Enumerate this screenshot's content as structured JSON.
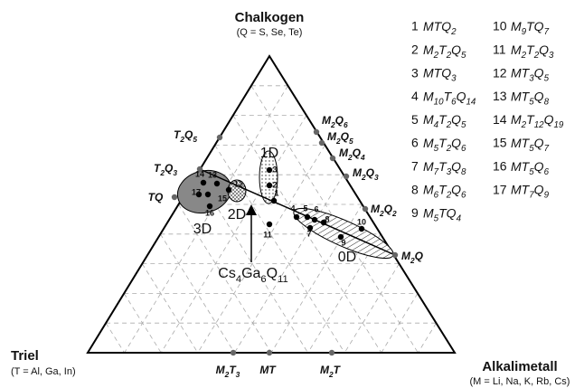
{
  "vertices": {
    "top": {
      "name": "Chalkogen",
      "note": "(Q =  S, Se, Te)"
    },
    "left": {
      "name": "Triel",
      "note": "(T = Al, Ga, In)"
    },
    "right": {
      "name": "Alkalimetall",
      "note": "(M = Li, Na, K, Rb, Cs)"
    }
  },
  "edge_compounds": [
    [
      "T",
      "2",
      "Q",
      "5"
    ],
    [
      "T",
      "2",
      "Q",
      "3"
    ],
    [
      "TQ"
    ],
    [
      "M",
      "2",
      "Q",
      "6"
    ],
    [
      "M",
      "2",
      "Q",
      "5"
    ],
    [
      "M",
      "2",
      "Q",
      "4"
    ],
    [
      "M",
      "2",
      "Q",
      "3"
    ],
    [
      "M",
      "2",
      "Q",
      "2"
    ],
    [
      "M",
      "2",
      "Q"
    ],
    [
      "M",
      "2",
      "T",
      "3"
    ],
    [
      "MT"
    ],
    [
      "M",
      "2",
      "T"
    ]
  ],
  "regions": [
    "1D",
    "2D",
    "3D",
    "0D"
  ],
  "points": [
    "1",
    "2",
    "3",
    "4",
    "5",
    "6",
    "7",
    "8",
    "9",
    "10",
    "11",
    "12",
    "13",
    "14",
    "15",
    "16",
    "17"
  ],
  "annotation": [
    "Cs",
    "4",
    "Ga",
    "6",
    "Q",
    "11"
  ],
  "legend": [
    {
      "number": "1",
      "formula": [
        "MTQ",
        "2"
      ]
    },
    {
      "number": "2",
      "formula": [
        "M",
        "2",
        "T",
        "2",
        "Q",
        "5"
      ]
    },
    {
      "number": "3",
      "formula": [
        "MTQ",
        "3"
      ]
    },
    {
      "number": "4",
      "formula": [
        "M",
        "10",
        "T",
        "6",
        "Q",
        "14"
      ]
    },
    {
      "number": "5",
      "formula": [
        "M",
        "4",
        "T",
        "2",
        "Q",
        "5"
      ]
    },
    {
      "number": "6",
      "formula": [
        "M",
        "5",
        "T",
        "2",
        "Q",
        "6"
      ]
    },
    {
      "number": "7",
      "formula": [
        "M",
        "7",
        "T",
        "3",
        "Q",
        "8"
      ]
    },
    {
      "number": "8",
      "formula": [
        "M",
        "6",
        "T",
        "2",
        "Q",
        "6"
      ]
    },
    {
      "number": "9",
      "formula": [
        "M",
        "5",
        "TQ",
        "4"
      ]
    },
    {
      "number": "10",
      "formula": [
        "M",
        "9",
        "TQ",
        "7"
      ]
    },
    {
      "number": "11",
      "formula": [
        "M",
        "2",
        "T",
        "2",
        "Q",
        "3"
      ]
    },
    {
      "number": "12",
      "formula": [
        "MT",
        "3",
        "Q",
        "5"
      ]
    },
    {
      "number": "13",
      "formula": [
        "MT",
        "5",
        "Q",
        "8"
      ]
    },
    {
      "number": "14",
      "formula": [
        "M",
        "2",
        "T",
        "12",
        "Q",
        "19"
      ]
    },
    {
      "number": "15",
      "formula": [
        "MT",
        "5",
        "Q",
        "7"
      ]
    },
    {
      "number": "16",
      "formula": [
        "MT",
        "5",
        "Q",
        "6"
      ]
    },
    {
      "number": "17",
      "formula": [
        "MT",
        "7",
        "Q",
        "9"
      ]
    }
  ]
}
